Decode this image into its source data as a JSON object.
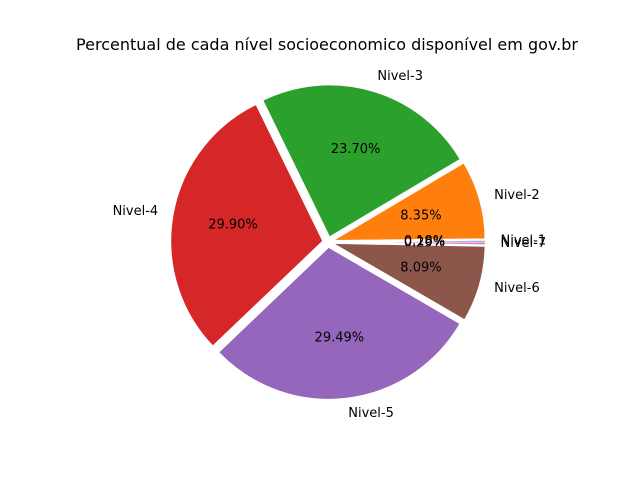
{
  "chart_data": {
    "type": "pie",
    "title": "Percentual de cada nível socioeconomico disponível em gov.br",
    "slices": [
      {
        "label": "Nivel-1",
        "value": 0.18,
        "pct_text": "0.18%",
        "color": "#1f77b4"
      },
      {
        "label": "Nivel-2",
        "value": 8.35,
        "pct_text": "8.35%",
        "color": "#ff7f0e"
      },
      {
        "label": "Nivel-3",
        "value": 23.7,
        "pct_text": "23.70%",
        "color": "#2ca02c"
      },
      {
        "label": "Nivel-4",
        "value": 29.9,
        "pct_text": "29.90%",
        "color": "#d62728"
      },
      {
        "label": "Nivel-5",
        "value": 29.49,
        "pct_text": "29.49%",
        "color": "#9467bd"
      },
      {
        "label": "Nivel-6",
        "value": 8.09,
        "pct_text": "8.09%",
        "color": "#8c564b"
      },
      {
        "label": "Nivel-7",
        "value": 0.29,
        "pct_text": "0.29%",
        "color": "#e377c2"
      }
    ],
    "start_angle_deg": 0,
    "direction": "counterclockwise",
    "exploded": true,
    "legend": "none"
  }
}
